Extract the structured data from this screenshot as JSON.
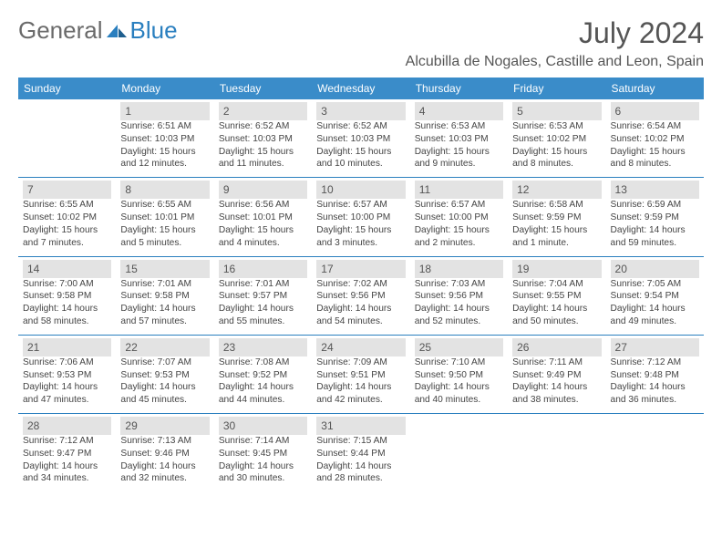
{
  "logo": {
    "general": "General",
    "blue": "Blue"
  },
  "header": {
    "month": "July 2024",
    "location": "Alcubilla de Nogales, Castille and Leon, Spain"
  },
  "colors": {
    "header_bg": "#3a8cc9",
    "border": "#2a7fbf",
    "daynum_bg": "#e3e3e3",
    "text": "#444444",
    "title": "#555555"
  },
  "dayNames": [
    "Sunday",
    "Monday",
    "Tuesday",
    "Wednesday",
    "Thursday",
    "Friday",
    "Saturday"
  ],
  "weeks": [
    [
      null,
      {
        "n": "1",
        "sr": "Sunrise: 6:51 AM",
        "ss": "Sunset: 10:03 PM",
        "dl": "Daylight: 15 hours and 12 minutes."
      },
      {
        "n": "2",
        "sr": "Sunrise: 6:52 AM",
        "ss": "Sunset: 10:03 PM",
        "dl": "Daylight: 15 hours and 11 minutes."
      },
      {
        "n": "3",
        "sr": "Sunrise: 6:52 AM",
        "ss": "Sunset: 10:03 PM",
        "dl": "Daylight: 15 hours and 10 minutes."
      },
      {
        "n": "4",
        "sr": "Sunrise: 6:53 AM",
        "ss": "Sunset: 10:03 PM",
        "dl": "Daylight: 15 hours and 9 minutes."
      },
      {
        "n": "5",
        "sr": "Sunrise: 6:53 AM",
        "ss": "Sunset: 10:02 PM",
        "dl": "Daylight: 15 hours and 8 minutes."
      },
      {
        "n": "6",
        "sr": "Sunrise: 6:54 AM",
        "ss": "Sunset: 10:02 PM",
        "dl": "Daylight: 15 hours and 8 minutes."
      }
    ],
    [
      {
        "n": "7",
        "sr": "Sunrise: 6:55 AM",
        "ss": "Sunset: 10:02 PM",
        "dl": "Daylight: 15 hours and 7 minutes."
      },
      {
        "n": "8",
        "sr": "Sunrise: 6:55 AM",
        "ss": "Sunset: 10:01 PM",
        "dl": "Daylight: 15 hours and 5 minutes."
      },
      {
        "n": "9",
        "sr": "Sunrise: 6:56 AM",
        "ss": "Sunset: 10:01 PM",
        "dl": "Daylight: 15 hours and 4 minutes."
      },
      {
        "n": "10",
        "sr": "Sunrise: 6:57 AM",
        "ss": "Sunset: 10:00 PM",
        "dl": "Daylight: 15 hours and 3 minutes."
      },
      {
        "n": "11",
        "sr": "Sunrise: 6:57 AM",
        "ss": "Sunset: 10:00 PM",
        "dl": "Daylight: 15 hours and 2 minutes."
      },
      {
        "n": "12",
        "sr": "Sunrise: 6:58 AM",
        "ss": "Sunset: 9:59 PM",
        "dl": "Daylight: 15 hours and 1 minute."
      },
      {
        "n": "13",
        "sr": "Sunrise: 6:59 AM",
        "ss": "Sunset: 9:59 PM",
        "dl": "Daylight: 14 hours and 59 minutes."
      }
    ],
    [
      {
        "n": "14",
        "sr": "Sunrise: 7:00 AM",
        "ss": "Sunset: 9:58 PM",
        "dl": "Daylight: 14 hours and 58 minutes."
      },
      {
        "n": "15",
        "sr": "Sunrise: 7:01 AM",
        "ss": "Sunset: 9:58 PM",
        "dl": "Daylight: 14 hours and 57 minutes."
      },
      {
        "n": "16",
        "sr": "Sunrise: 7:01 AM",
        "ss": "Sunset: 9:57 PM",
        "dl": "Daylight: 14 hours and 55 minutes."
      },
      {
        "n": "17",
        "sr": "Sunrise: 7:02 AM",
        "ss": "Sunset: 9:56 PM",
        "dl": "Daylight: 14 hours and 54 minutes."
      },
      {
        "n": "18",
        "sr": "Sunrise: 7:03 AM",
        "ss": "Sunset: 9:56 PM",
        "dl": "Daylight: 14 hours and 52 minutes."
      },
      {
        "n": "19",
        "sr": "Sunrise: 7:04 AM",
        "ss": "Sunset: 9:55 PM",
        "dl": "Daylight: 14 hours and 50 minutes."
      },
      {
        "n": "20",
        "sr": "Sunrise: 7:05 AM",
        "ss": "Sunset: 9:54 PM",
        "dl": "Daylight: 14 hours and 49 minutes."
      }
    ],
    [
      {
        "n": "21",
        "sr": "Sunrise: 7:06 AM",
        "ss": "Sunset: 9:53 PM",
        "dl": "Daylight: 14 hours and 47 minutes."
      },
      {
        "n": "22",
        "sr": "Sunrise: 7:07 AM",
        "ss": "Sunset: 9:53 PM",
        "dl": "Daylight: 14 hours and 45 minutes."
      },
      {
        "n": "23",
        "sr": "Sunrise: 7:08 AM",
        "ss": "Sunset: 9:52 PM",
        "dl": "Daylight: 14 hours and 44 minutes."
      },
      {
        "n": "24",
        "sr": "Sunrise: 7:09 AM",
        "ss": "Sunset: 9:51 PM",
        "dl": "Daylight: 14 hours and 42 minutes."
      },
      {
        "n": "25",
        "sr": "Sunrise: 7:10 AM",
        "ss": "Sunset: 9:50 PM",
        "dl": "Daylight: 14 hours and 40 minutes."
      },
      {
        "n": "26",
        "sr": "Sunrise: 7:11 AM",
        "ss": "Sunset: 9:49 PM",
        "dl": "Daylight: 14 hours and 38 minutes."
      },
      {
        "n": "27",
        "sr": "Sunrise: 7:12 AM",
        "ss": "Sunset: 9:48 PM",
        "dl": "Daylight: 14 hours and 36 minutes."
      }
    ],
    [
      {
        "n": "28",
        "sr": "Sunrise: 7:12 AM",
        "ss": "Sunset: 9:47 PM",
        "dl": "Daylight: 14 hours and 34 minutes."
      },
      {
        "n": "29",
        "sr": "Sunrise: 7:13 AM",
        "ss": "Sunset: 9:46 PM",
        "dl": "Daylight: 14 hours and 32 minutes."
      },
      {
        "n": "30",
        "sr": "Sunrise: 7:14 AM",
        "ss": "Sunset: 9:45 PM",
        "dl": "Daylight: 14 hours and 30 minutes."
      },
      {
        "n": "31",
        "sr": "Sunrise: 7:15 AM",
        "ss": "Sunset: 9:44 PM",
        "dl": "Daylight: 14 hours and 28 minutes."
      },
      null,
      null,
      null
    ]
  ]
}
